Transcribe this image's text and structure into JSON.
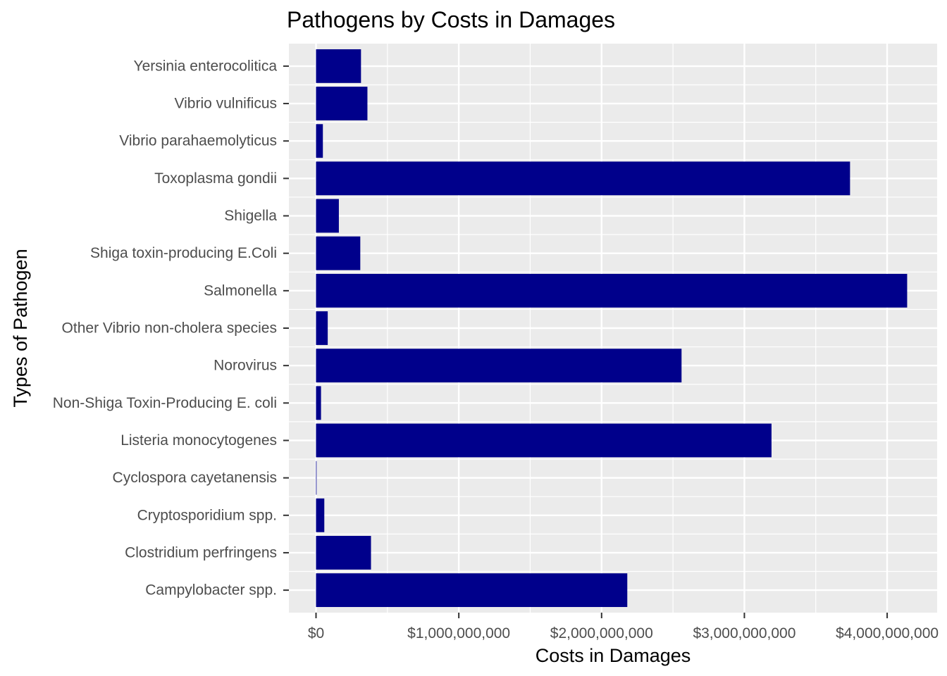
{
  "chart_data": {
    "type": "bar",
    "orientation": "horizontal",
    "title": "Pathogens by Costs in Damages",
    "xlabel": "Costs in Damages",
    "ylabel": "Types of Pathogen",
    "categories": [
      "Campylobacter spp.",
      "Clostridium perfringens",
      "Cryptosporidium spp.",
      "Cyclospora cayetanensis",
      "Listeria monocytogenes",
      "Non-Shiga Toxin-Producing E. coli",
      "Norovirus",
      "Other Vibrio non-cholera species",
      "Salmonella",
      "Shiga toxin-producing E.Coli",
      "Shigella",
      "Toxoplasma gondii",
      "Vibrio parahaemolyticus",
      "Vibrio vulnificus",
      "Yersinia enterocolitica"
    ],
    "values": [
      2180000000,
      385000000,
      58000000,
      3000000,
      3190000000,
      35000000,
      2560000000,
      82000000,
      4140000000,
      310000000,
      160000000,
      3740000000,
      48000000,
      360000000,
      315000000
    ],
    "xlim": [
      -190000000,
      4350000000
    ],
    "x_ticks": [
      0,
      1000000000,
      2000000000,
      3000000000,
      4000000000
    ],
    "x_tick_labels": [
      "$0",
      "$1,000,000,000",
      "$2,000,000,000",
      "$3,000,000,000",
      "$4,000,000,000"
    ],
    "grid": true,
    "colors": {
      "bar": "#00008b",
      "panel": "#ebebeb",
      "grid": "#ffffff"
    }
  }
}
